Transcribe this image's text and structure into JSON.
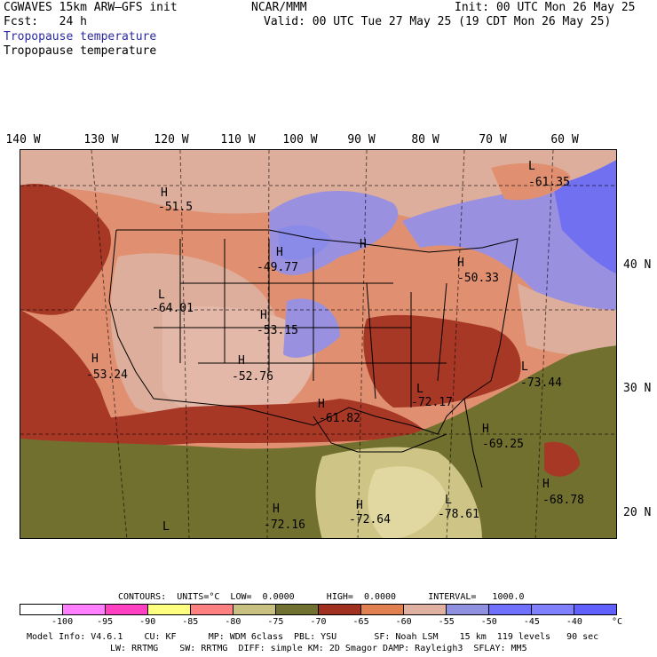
{
  "header": {
    "model": "CGWAVES 15km ARW–GFS init",
    "center": "NCAR/MMM",
    "init": "Init: 00 UTC Mon 26 May 25",
    "fcst": "Fcst:   24 h",
    "valid": "Valid: 00 UTC Tue 27 May 25 (19 CDT Mon 26 May 25)",
    "field_blue": "Tropopause temperature",
    "field_black": "Tropopause temperature"
  },
  "lon_labels": [
    "140 W",
    "130 W",
    "120 W",
    "110 W",
    "100 W",
    "90 W",
    "80 W",
    "70 W",
    "60 W"
  ],
  "lat_labels": [
    "40 N",
    "30 N",
    "20 N"
  ],
  "highs_lows": [
    {
      "sym": "H",
      "val": "-51.5"
    },
    {
      "sym": "L",
      "val": "-61.35"
    },
    {
      "sym": "H",
      "val": "-49.77"
    },
    {
      "sym": "H",
      "val": ""
    },
    {
      "sym": "H",
      "val": "-50.33"
    },
    {
      "sym": "L",
      "val": "-64.01"
    },
    {
      "sym": "H",
      "val": "-53.15"
    },
    {
      "sym": "H",
      "val": "-53.24"
    },
    {
      "sym": "H",
      "val": "-52.76"
    },
    {
      "sym": "L",
      "val": "-73.44"
    },
    {
      "sym": "H",
      "val": "-61.82"
    },
    {
      "sym": "L",
      "val": "-72.17"
    },
    {
      "sym": "H",
      "val": "-69.25"
    },
    {
      "sym": "H",
      "val": "-68.78"
    },
    {
      "sym": "H",
      "val": "-72.16"
    },
    {
      "sym": "H",
      "val": "-72.64"
    },
    {
      "sym": "L",
      "val": "-78.61"
    },
    {
      "sym": "L",
      "val": ""
    }
  ],
  "contours_line": "CONTOURS:  UNITS=°C  LOW=  0.0000      HIGH=  0.0000      INTERVAL=   1000.0",
  "colorbar": {
    "colors": [
      "#ffffff",
      "#ff7fff",
      "#ff40c0",
      "#ffff80",
      "#ff8080",
      "#c8c080",
      "#707030",
      "#a03020",
      "#e08050",
      "#e0b0a0",
      "#9090e0",
      "#7070ff",
      "#8080ff",
      "#6060ff"
    ],
    "labels": [
      "-100",
      "-95",
      "-90",
      "-85",
      "-80",
      "-75",
      "-70",
      "-65",
      "-60",
      "-55",
      "-50",
      "-45",
      "-40"
    ],
    "unit": "°C"
  },
  "footer": {
    "line1": "Model Info: V4.6.1    CU: KF      MP: WDM 6class  PBL: YSU       SF: Noah LSM    15 km  119 levels   90 sec",
    "line2": "LW: RRTMG    SW: RRTMG  DIFF: simple KM: 2D Smagor DAMP: Rayleigh3  SFLAY: MM5"
  }
}
